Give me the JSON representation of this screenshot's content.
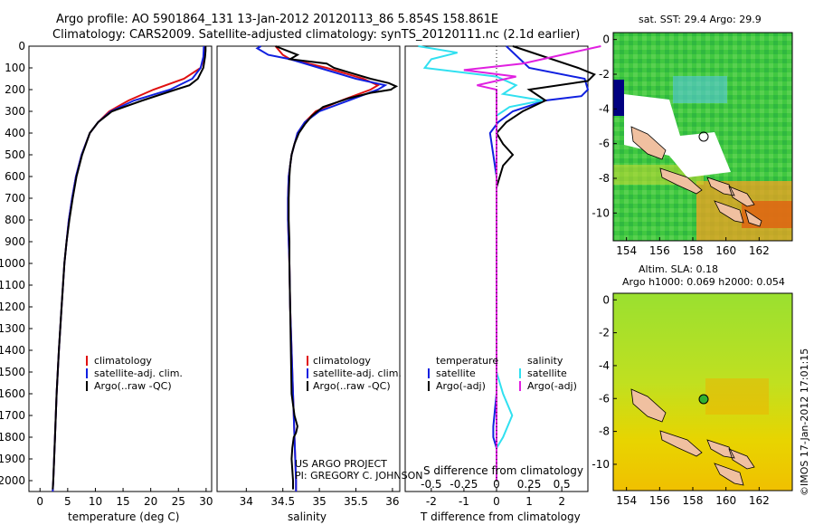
{
  "header": {
    "line1": "Argo profile: AO 5901864_131 13-Jan-2012 20120113_86 5.854S 158.861E",
    "line2": "Climatology: CARS2009. Satellite-adjusted climatology: synTS_20120111.nc (2.1d earlier)"
  },
  "depth_ticks": [
    "0",
    "100",
    "200",
    "300",
    "400",
    "500",
    "600",
    "700",
    "800",
    "900",
    "1000",
    "1100",
    "1200",
    "1300",
    "1400",
    "1500",
    "1600",
    "1700",
    "1800",
    "1900",
    "2000"
  ],
  "colors": {
    "climatology": "#e01010",
    "satellite": "#1020e0",
    "argo": "#000000",
    "salinity_sat": "#30e0f0",
    "salinity_argo": "#e020e0"
  },
  "chart_data": [
    {
      "type": "line",
      "id": "temperature",
      "xlabel": "temperature (deg C)",
      "xlim": [
        -2,
        31
      ],
      "ylim": [
        2050,
        0
      ],
      "xticks": [
        "0",
        "5",
        "10",
        "15",
        "20",
        "25",
        "30"
      ],
      "legend": [
        "climatology",
        "satellite-adj. clim.",
        "Argo(..raw -QC)"
      ],
      "series": [
        {
          "name": "climatology",
          "depth": [
            0,
            50,
            100,
            150,
            200,
            250,
            300,
            350,
            400,
            500,
            600,
            700,
            800,
            900,
            1000,
            1200,
            1400,
            1600,
            1800,
            2000,
            2050
          ],
          "values": [
            29.8,
            29.7,
            29.0,
            26.0,
            20.5,
            16.0,
            12.5,
            10.5,
            9.0,
            7.5,
            6.5,
            5.8,
            5.2,
            4.8,
            4.4,
            3.9,
            3.4,
            3.0,
            2.7,
            2.4,
            2.3
          ]
        },
        {
          "name": "satellite-adj. clim.",
          "depth": [
            0,
            50,
            100,
            150,
            200,
            250,
            300,
            350,
            400,
            500,
            600,
            700,
            800,
            900,
            1000,
            1200,
            1400,
            1600,
            1800,
            2000,
            2050
          ],
          "values": [
            29.6,
            29.5,
            29.0,
            27.5,
            23.5,
            17.0,
            12.8,
            10.5,
            9.0,
            7.5,
            6.5,
            5.8,
            5.2,
            4.8,
            4.4,
            3.9,
            3.4,
            3.0,
            2.7,
            2.4,
            2.3
          ]
        },
        {
          "name": "Argo(..raw -QC)",
          "depth": [
            0,
            20,
            50,
            100,
            150,
            180,
            200,
            250,
            300,
            350,
            400,
            500,
            600,
            700,
            800,
            900,
            1000,
            1200,
            1400,
            1600,
            1800,
            2000,
            2040
          ],
          "values": [
            29.9,
            29.9,
            29.8,
            29.5,
            28.5,
            27.0,
            24.5,
            18.5,
            13.0,
            10.5,
            9.0,
            7.6,
            6.6,
            5.9,
            5.3,
            4.8,
            4.4,
            3.9,
            3.4,
            3.0,
            2.7,
            2.4,
            2.3
          ]
        }
      ]
    },
    {
      "type": "line",
      "id": "salinity",
      "xlabel": "salinity",
      "xlim": [
        33.6,
        36.1
      ],
      "ylim": [
        2050,
        0
      ],
      "xticks": [
        "34",
        "34.5",
        "35",
        "35.5",
        "36"
      ],
      "legend": [
        "climatology",
        "satellite-adj. clim.",
        "Argo(..raw -QC)"
      ],
      "annotation": [
        "US ARGO PROJECT",
        "PI: GREGORY C. JOHNSON"
      ],
      "series": [
        {
          "name": "climatology",
          "depth": [
            0,
            40,
            60,
            100,
            150,
            180,
            200,
            250,
            300,
            350,
            400,
            500,
            600,
            700,
            800,
            900,
            1000,
            1200,
            1400,
            1600,
            1800,
            2000,
            2050
          ],
          "values": [
            34.4,
            34.5,
            34.6,
            35.1,
            35.6,
            35.8,
            35.7,
            35.3,
            34.95,
            34.8,
            34.7,
            34.62,
            34.58,
            34.57,
            34.57,
            34.58,
            34.59,
            34.6,
            34.62,
            34.64,
            34.66,
            34.68,
            34.68
          ]
        },
        {
          "name": "satellite-adj. clim.",
          "depth": [
            0,
            10,
            40,
            60,
            100,
            150,
            180,
            200,
            250,
            300,
            350,
            400,
            500,
            600,
            700,
            800,
            900,
            1000,
            1200,
            1400,
            1600,
            1800,
            2000,
            2050
          ],
          "values": [
            34.2,
            34.15,
            34.3,
            34.6,
            35.0,
            35.5,
            35.9,
            35.8,
            35.4,
            35.0,
            34.8,
            34.7,
            34.62,
            34.58,
            34.57,
            34.57,
            34.58,
            34.59,
            34.6,
            34.62,
            34.64,
            34.66,
            34.68,
            34.68
          ]
        },
        {
          "name": "Argo(..raw -QC)",
          "depth": [
            0,
            20,
            40,
            60,
            80,
            100,
            120,
            150,
            170,
            185,
            195,
            200,
            215,
            240,
            280,
            320,
            360,
            400,
            450,
            500,
            550,
            600,
            700,
            800,
            900,
            1000,
            1200,
            1400,
            1600,
            1700,
            1750,
            1780,
            1800,
            1850,
            1900,
            1950,
            2000,
            2040
          ],
          "values": [
            34.4,
            34.55,
            34.7,
            34.6,
            35.1,
            35.2,
            35.4,
            35.7,
            35.95,
            36.05,
            36.0,
            35.98,
            35.7,
            35.4,
            35.05,
            34.9,
            34.8,
            34.72,
            34.66,
            34.62,
            34.6,
            34.59,
            34.58,
            34.58,
            34.59,
            34.59,
            34.6,
            34.61,
            34.62,
            34.66,
            34.7,
            34.68,
            34.65,
            34.63,
            34.62,
            34.63,
            34.64,
            34.64
          ]
        }
      ]
    },
    {
      "type": "line",
      "id": "differences",
      "xlabel": "T difference from climatology",
      "xlabel2": "S difference from climatology",
      "xlim": [
        -2.8,
        2.8
      ],
      "ylim": [
        2050,
        0
      ],
      "xticks": [
        "-2",
        "-1",
        "0",
        "1",
        "2"
      ],
      "xticks_s": [
        "-0.5",
        "-0.25",
        "0",
        "0.25",
        "0.5"
      ],
      "legend_temperature_title": "temperature",
      "legend_salinity_title": "salinity",
      "legend_temperature": [
        "satellite",
        "Argo(-adj)"
      ],
      "legend_salinity": [
        "satellite",
        "Argo(-adj)"
      ],
      "series": [
        {
          "name": "temperature satellite",
          "depth": [
            0,
            100,
            150,
            200,
            230,
            250,
            300,
            350,
            400,
            500,
            600,
            700,
            800,
            1000,
            1200,
            1400,
            1600,
            1750,
            1800,
            1850,
            1900,
            2000
          ],
          "values": [
            0.3,
            1.0,
            2.7,
            2.8,
            2.6,
            1.5,
            0.5,
            0.05,
            -0.2,
            -0.1,
            0.0,
            0.0,
            0.0,
            0.0,
            0.0,
            0.0,
            0.0,
            -0.1,
            -0.1,
            0.0,
            0.0,
            0.0
          ]
        },
        {
          "name": "temperature Argo(-adj)",
          "depth": [
            0,
            100,
            130,
            160,
            200,
            250,
            300,
            350,
            400,
            450,
            500,
            550,
            600,
            650,
            700,
            800,
            900,
            1000,
            1200,
            1400,
            1600,
            2000
          ],
          "values": [
            0.5,
            2.5,
            3.0,
            2.8,
            1.0,
            1.5,
            0.8,
            0.3,
            0.0,
            0.2,
            0.5,
            0.2,
            0.1,
            0.0,
            0.0,
            0.0,
            0.0,
            0.0,
            0.0,
            0.0,
            0.0,
            0.0
          ]
        },
        {
          "name": "salinity satellite",
          "depth": [
            0,
            30,
            60,
            100,
            140,
            180,
            220,
            250,
            280,
            320,
            380,
            450,
            600,
            800,
            1000,
            1200,
            1500,
            1600,
            1700,
            1800,
            1850,
            1900,
            2000
          ],
          "values": [
            -0.6,
            -0.3,
            -0.5,
            -0.55,
            0.0,
            0.15,
            0.05,
            0.35,
            0.1,
            0.0,
            0.0,
            0.0,
            0.0,
            0.0,
            0.0,
            0.0,
            0.0,
            0.05,
            0.12,
            0.05,
            0.0,
            0.0,
            0.0
          ]
        },
        {
          "name": "salinity Argo(-adj)",
          "depth": [
            0,
            40,
            80,
            110,
            140,
            160,
            180,
            200,
            250,
            300,
            400,
            500,
            700,
            1000,
            1500,
            2000
          ],
          "values": [
            0.8,
            0.5,
            0.2,
            -0.25,
            0.15,
            0.0,
            -0.15,
            0.0,
            0.0,
            0.0,
            0.0,
            0.0,
            0.0,
            0.0,
            0.0,
            0.0
          ]
        }
      ]
    }
  ],
  "maps": {
    "sst": {
      "title": "sat. SST: 29.4 Argo: 29.9",
      "xticks": [
        "154",
        "156",
        "158",
        "160",
        "162"
      ],
      "yticks": [
        "0",
        "-2",
        "-4",
        "-6",
        "-8",
        "-10"
      ]
    },
    "sla": {
      "title1": "Altim. SLA: 0.18",
      "title2": "Argo h1000: 0.069 h2000: 0.054",
      "xticks": [
        "154",
        "156",
        "158",
        "160",
        "162"
      ],
      "yticks": [
        "0",
        "-2",
        "-4",
        "-6",
        "-8",
        "-10"
      ]
    },
    "float_position": {
      "lon": 158.861,
      "lat": -5.854
    }
  },
  "footer": {
    "stamp": "©IMOS 17-Jan-2012 17:01:15"
  }
}
